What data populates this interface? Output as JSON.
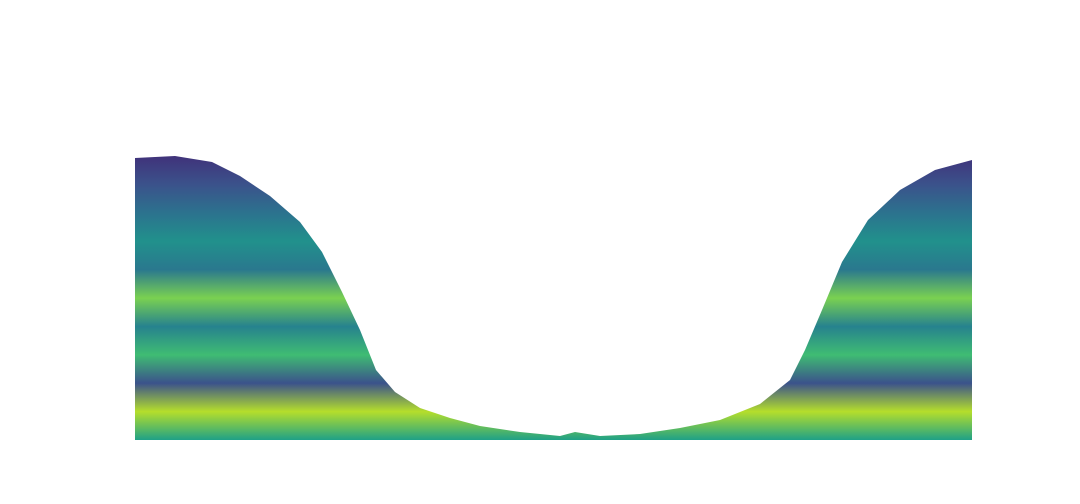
{
  "chart_data": {
    "type": "heatmap",
    "colormap": "viridis",
    "colors": [
      "#40327a",
      "#3b528b",
      "#2c728e",
      "#21918c",
      "#2a788e",
      "#7ad151",
      "#26828e",
      "#3fbc73",
      "#3b528b",
      "#b5de2b",
      "#1fa187"
    ]
  }
}
